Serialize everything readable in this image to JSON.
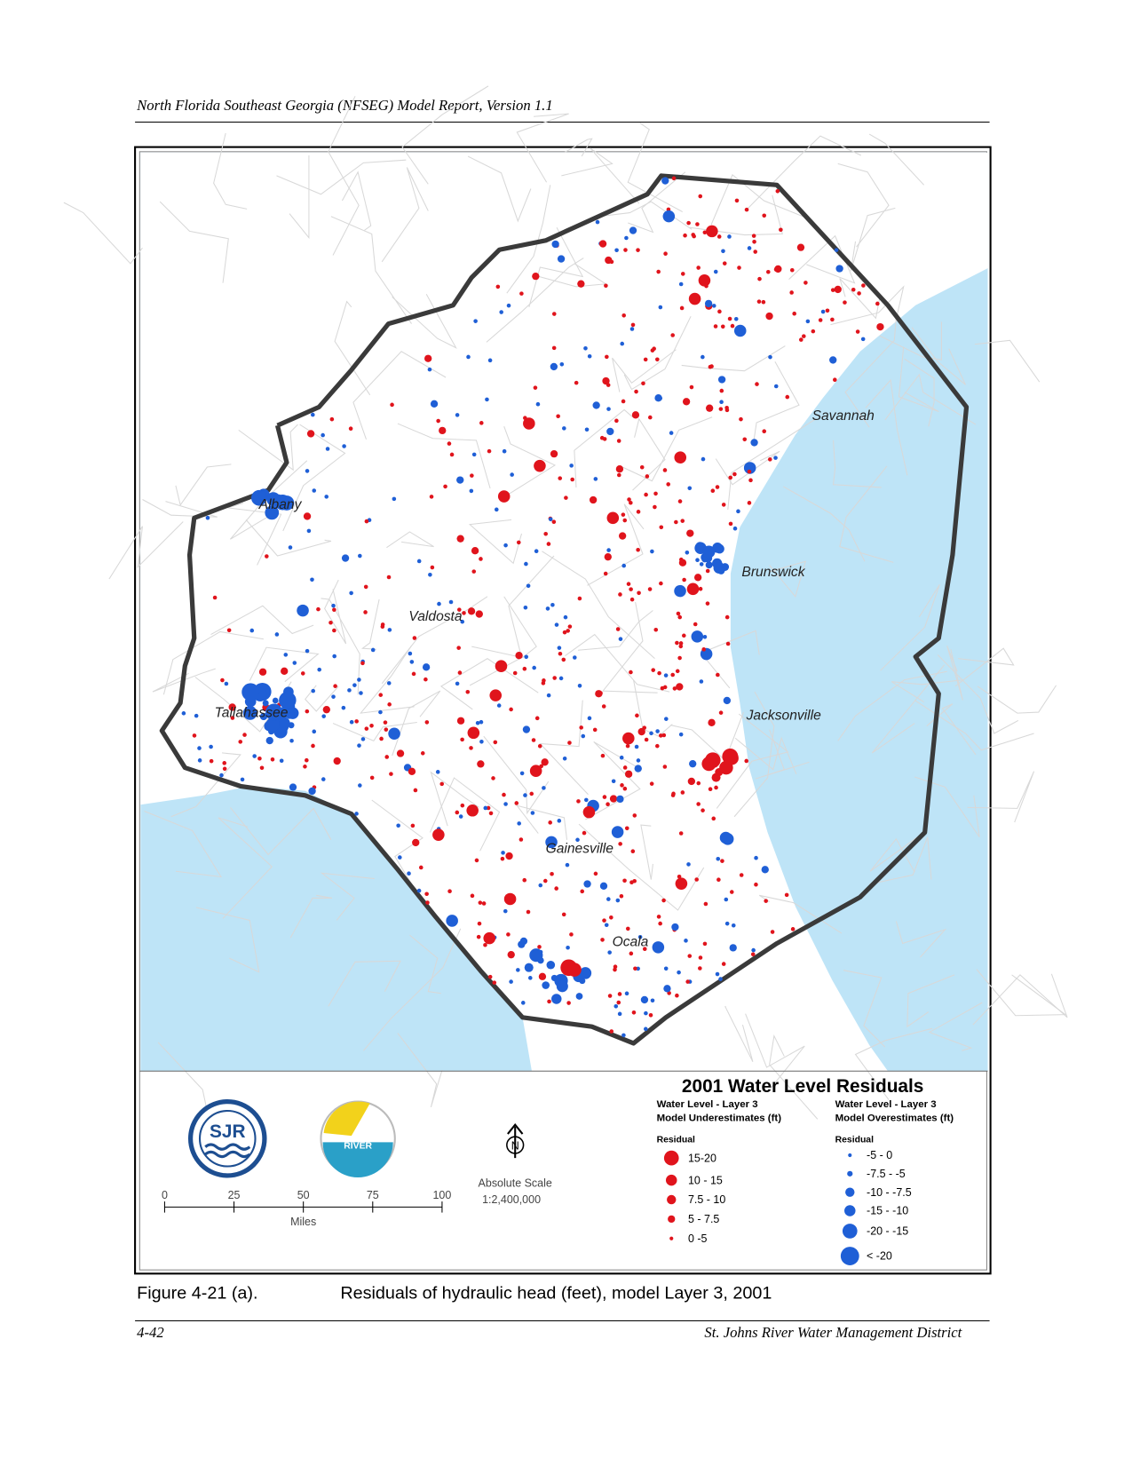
{
  "header": {
    "title": "North Florida Southeast Georgia (NFSEG) Model Report, Version 1.1"
  },
  "map": {
    "cities": [
      "Savannah",
      "Albany",
      "Brunswick",
      "Valdosta",
      "Tallahassee",
      "Jacksonville",
      "Gainesville",
      "Ocala"
    ]
  },
  "legend": {
    "title": "2001 Water Level Residuals",
    "under": {
      "heading1": "Water Level - Layer 3",
      "heading2": "Model Underestimates (ft)",
      "residual": "Residual",
      "items": [
        "15-20",
        "10 - 15",
        "7.5 - 10",
        "5 - 7.5",
        "0 -5"
      ]
    },
    "over": {
      "heading1": "Water Level - Layer 3",
      "heading2": "Model Overestimates (ft)",
      "residual": "Residual",
      "items": [
        "-5 - 0",
        "-7.5 - -5",
        "-10 - -7.5",
        "-15 - -10",
        "-20 - -15",
        "< -20"
      ]
    }
  },
  "logos": {
    "left": "SJR",
    "right": "RIVER"
  },
  "scale": {
    "ticks": [
      "0",
      "25",
      "50",
      "75",
      "100"
    ],
    "unit": "Miles",
    "name": "Absolute Scale",
    "ratio": "1:2,400,000"
  },
  "north": "N",
  "caption": {
    "number": "Figure 4-21 (a).",
    "text": "Residuals of hydraulic head (feet), model Layer 3, 2001"
  },
  "footer": {
    "page": "4-42",
    "org": "St. Johns River Water Management District"
  }
}
